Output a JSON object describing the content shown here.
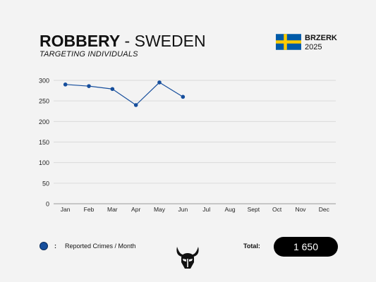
{
  "header": {
    "crime": "ROBBERY",
    "separator": " - ",
    "country": "SWEDEN",
    "subtitle": "TARGETING INDIVIDUALS"
  },
  "brand": {
    "name": "BRZERK",
    "year": "2025",
    "flag": "sweden-flag"
  },
  "colors": {
    "series": "#164e9c",
    "flag_blue": "#005ba8",
    "flag_yellow": "#fecb00"
  },
  "chart_data": {
    "type": "line",
    "categories": [
      "Jan",
      "Feb",
      "Mar",
      "Apr",
      "May",
      "Jun",
      "Jul",
      "Aug",
      "Sept",
      "Oct",
      "Nov",
      "Dec"
    ],
    "series": [
      {
        "name": "Reported Crimes / Month",
        "values": [
          290,
          286,
          279,
          240,
          295,
          260,
          null,
          null,
          null,
          null,
          null,
          null
        ]
      }
    ],
    "yticks": [
      0,
      50,
      100,
      150,
      200,
      250,
      300
    ],
    "ylim": [
      0,
      300
    ],
    "grid": true,
    "legend": "bottom-left"
  },
  "legend": {
    "colon": ":",
    "label": "Reported Crimes / Month"
  },
  "footer": {
    "logo": "viking-helmet-logo",
    "total_label": "Total:",
    "total_value": "1 650"
  }
}
